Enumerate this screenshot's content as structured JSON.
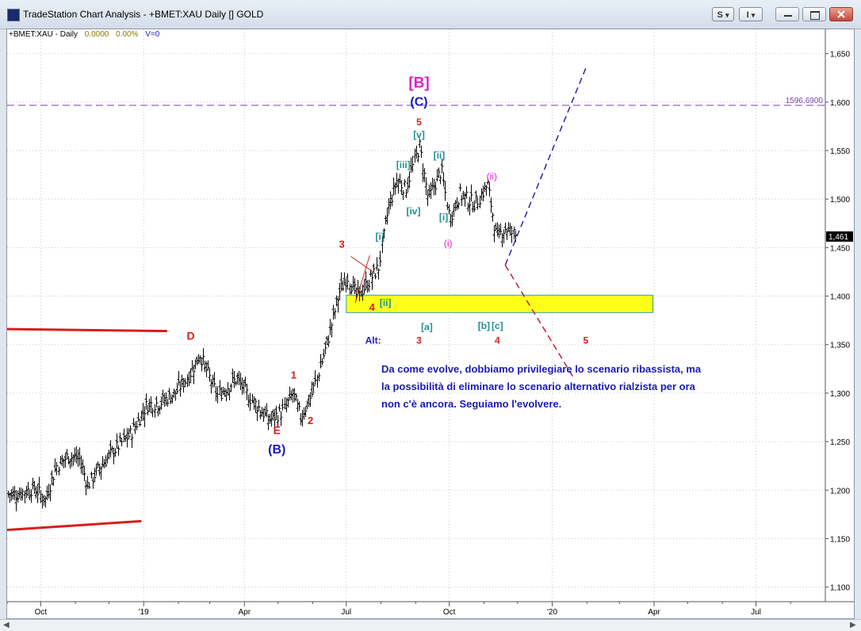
{
  "window": {
    "title": "TradeStation Chart Analysis - +BMET:XAU Daily [] GOLD",
    "btn_s": "S",
    "btn_i": "I",
    "btn_s_arrow": "▾",
    "btn_i_arrow": "▾"
  },
  "info": {
    "symbol": "+BMET:XAU - Daily",
    "last": "0.0000",
    "change": "0.00%",
    "volume": "V=0"
  },
  "chart_data": {
    "type": "bar",
    "instrument": "+BMET:XAU",
    "timeframe": "Daily",
    "x_labels": [
      "Oct",
      "'19",
      "Apr",
      "Jul",
      "Oct",
      "'20",
      "Apr",
      "Jul"
    ],
    "y_ticks": [
      "1,650",
      "1,600",
      "1,550",
      "1,500",
      "1,450",
      "1,400",
      "1,350",
      "1,300",
      "1,250",
      "1,200",
      "1,150",
      "1,100"
    ],
    "y_tick_values": [
      1650,
      1600,
      1550,
      1500,
      1450,
      1400,
      1350,
      1300,
      1250,
      1200,
      1150,
      1100
    ],
    "ylim": [
      1085,
      1675
    ],
    "x_months_visible": [
      "2018-09",
      "2020-09"
    ],
    "last_price": "1,461",
    "last_price_value": 1461,
    "hline": {
      "label": "1596.6900",
      "value": 1596.69,
      "color": "#7b3fb0"
    },
    "yellow_zone": {
      "from_date": "2019-07-01",
      "to_date": "2020-03-31",
      "low": 1383,
      "high": 1401
    },
    "price_path": [
      [
        "2018-09-10",
        1196
      ],
      [
        "2018-09-25",
        1202
      ],
      [
        "2018-10-05",
        1190
      ],
      [
        "2018-10-15",
        1225
      ],
      [
        "2018-10-25",
        1235
      ],
      [
        "2018-11-05",
        1232
      ],
      [
        "2018-11-12",
        1205
      ],
      [
        "2018-11-20",
        1220
      ],
      [
        "2018-12-03",
        1238
      ],
      [
        "2018-12-20",
        1258
      ],
      [
        "2019-01-04",
        1288
      ],
      [
        "2019-01-15",
        1290
      ],
      [
        "2019-01-29",
        1300
      ],
      [
        "2019-02-10",
        1318
      ],
      [
        "2019-02-20",
        1340
      ],
      [
        "2019-03-01",
        1315
      ],
      [
        "2019-03-08",
        1298
      ],
      [
        "2019-03-25",
        1315
      ],
      [
        "2019-04-05",
        1296
      ],
      [
        "2019-04-23",
        1272
      ],
      [
        "2019-05-06",
        1282
      ],
      [
        "2019-05-14",
        1300
      ],
      [
        "2019-05-21",
        1275
      ],
      [
        "2019-05-31",
        1298
      ],
      [
        "2019-06-12",
        1345
      ],
      [
        "2019-06-25",
        1405
      ],
      [
        "2019-07-02",
        1420
      ],
      [
        "2019-07-10",
        1400
      ],
      [
        "2019-07-18",
        1410
      ],
      [
        "2019-07-30",
        1430
      ],
      [
        "2019-08-07",
        1490
      ],
      [
        "2019-08-15",
        1520
      ],
      [
        "2019-08-23",
        1510
      ],
      [
        "2019-09-04",
        1555
      ],
      [
        "2019-09-12",
        1500
      ],
      [
        "2019-09-24",
        1530
      ],
      [
        "2019-10-01",
        1480
      ],
      [
        "2019-10-10",
        1505
      ],
      [
        "2019-10-24",
        1495
      ],
      [
        "2019-11-04",
        1515
      ],
      [
        "2019-11-12",
        1460
      ],
      [
        "2019-11-20",
        1470
      ],
      [
        "2019-11-29",
        1463
      ]
    ],
    "trendlines": [
      {
        "from": [
          "2018-09-01",
          1366
        ],
        "to": [
          "2019-01-22",
          1364
        ],
        "color": "#d71e1e",
        "style": "solid",
        "width": 3
      },
      {
        "from": [
          "2018-09-01",
          1159
        ],
        "to": [
          "2018-12-30",
          1168
        ],
        "color": "#d71e1e",
        "style": "solid",
        "width": 3
      },
      {
        "from": [
          "2019-11-20",
          1432
        ],
        "to": [
          "2020-01-31",
          1635
        ],
        "color": "#1a1aa6",
        "style": "dashed",
        "width": 1.4
      },
      {
        "from": [
          "2019-11-20",
          1432
        ],
        "to": [
          "2020-01-20",
          1316
        ],
        "color": "#b4142d",
        "style": "dashed",
        "width": 1.4
      },
      {
        "from": [
          "2019-07-09",
          1393
        ],
        "to": [
          "2019-07-22",
          1442
        ],
        "color": "#cc2222",
        "style": "solid",
        "width": 1
      },
      {
        "from": [
          "2019-07-05",
          1441
        ],
        "to": [
          "2019-07-25",
          1425
        ],
        "color": "#cc2222",
        "style": "solid",
        "width": 1
      }
    ],
    "annotations": [
      {
        "text": "D",
        "date": "2019-02-12",
        "price": 1355,
        "color": "#d71e1e",
        "size": 14,
        "bold": true
      },
      {
        "text": "E",
        "date": "2019-04-30",
        "price": 1258,
        "color": "#d71e1e",
        "size": 14,
        "bold": true
      },
      {
        "text": "(B)",
        "date": "2019-04-30",
        "price": 1238,
        "color": "#1a1ac0",
        "size": 16,
        "bold": true
      },
      {
        "text": "1",
        "date": "2019-05-15",
        "price": 1315,
        "color": "#d71e1e",
        "size": 13,
        "bold": true
      },
      {
        "text": "2",
        "date": "2019-05-30",
        "price": 1268,
        "color": "#d71e1e",
        "size": 13,
        "bold": true
      },
      {
        "text": "3",
        "date": "2019-06-27",
        "price": 1450,
        "color": "#d71e1e",
        "size": 13,
        "bold": true
      },
      {
        "text": "4",
        "date": "2019-07-24",
        "price": 1385,
        "color": "#d71e1e",
        "size": 13,
        "bold": true
      },
      {
        "text": "[ii]",
        "date": "2019-08-05",
        "price": 1390,
        "color": "#1f8f8f",
        "size": 12,
        "bold": true
      },
      {
        "text": "[i]",
        "date": "2019-07-31",
        "price": 1458,
        "color": "#1f8f8f",
        "size": 12,
        "bold": true
      },
      {
        "text": "[iii]",
        "date": "2019-08-21",
        "price": 1532,
        "color": "#1f8f8f",
        "size": 12,
        "bold": true
      },
      {
        "text": "[iv]",
        "date": "2019-08-30",
        "price": 1484,
        "color": "#1f8f8f",
        "size": 12,
        "bold": true
      },
      {
        "text": "[v]",
        "date": "2019-09-04",
        "price": 1563,
        "color": "#1f8f8f",
        "size": 12,
        "bold": true
      },
      {
        "text": "5",
        "date": "2019-09-04",
        "price": 1576,
        "color": "#d71e1e",
        "size": 12,
        "bold": true
      },
      {
        "text": "(C)",
        "date": "2019-09-04",
        "price": 1596,
        "color": "#1a1ac0",
        "size": 16,
        "bold": true
      },
      {
        "text": "[B]",
        "date": "2019-09-04",
        "price": 1615,
        "color": "#e020c8",
        "size": 19,
        "bold": true
      },
      {
        "text": "[i]",
        "date": "2019-09-26",
        "price": 1478,
        "color": "#1f8f8f",
        "size": 12,
        "bold": true
      },
      {
        "text": "[ii]",
        "date": "2019-09-22",
        "price": 1542,
        "color": "#1f8f8f",
        "size": 12,
        "bold": true
      },
      {
        "text": "(i)",
        "date": "2019-09-30",
        "price": 1451,
        "color": "#e020c8",
        "size": 12,
        "bold": false
      },
      {
        "text": "(ii)",
        "date": "2019-11-08",
        "price": 1520,
        "color": "#e020c8",
        "size": 12,
        "bold": false
      },
      {
        "text": "Alt:",
        "date": "2019-07-25",
        "price": 1351,
        "color": "#1a1ac0",
        "size": 12,
        "bold": true
      },
      {
        "text": "3",
        "date": "2019-09-04",
        "price": 1351,
        "color": "#d71e1e",
        "size": 12,
        "bold": true
      },
      {
        "text": "[a]",
        "date": "2019-09-11",
        "price": 1365,
        "color": "#1f8f8f",
        "size": 12,
        "bold": true
      },
      {
        "text": "[b]",
        "date": "2019-11-01",
        "price": 1366,
        "color": "#1f8f8f",
        "size": 12,
        "bold": true
      },
      {
        "text": "[c]",
        "date": "2019-11-13",
        "price": 1366,
        "color": "#1f8f8f",
        "size": 12,
        "bold": true
      },
      {
        "text": "4",
        "date": "2019-11-13",
        "price": 1351,
        "color": "#d71e1e",
        "size": 12,
        "bold": true
      },
      {
        "text": "5",
        "date": "2020-01-31",
        "price": 1351,
        "color": "#d71e1e",
        "size": 12,
        "bold": true
      }
    ],
    "comment": [
      "Da come evolve, dobbiamo privilegiare lo scenario ribassista, ma",
      "la possibilità di eliminare lo scenario alternativo rialzista per ora",
      "non c'è ancora.  Seguiamo l'evolvere."
    ]
  }
}
